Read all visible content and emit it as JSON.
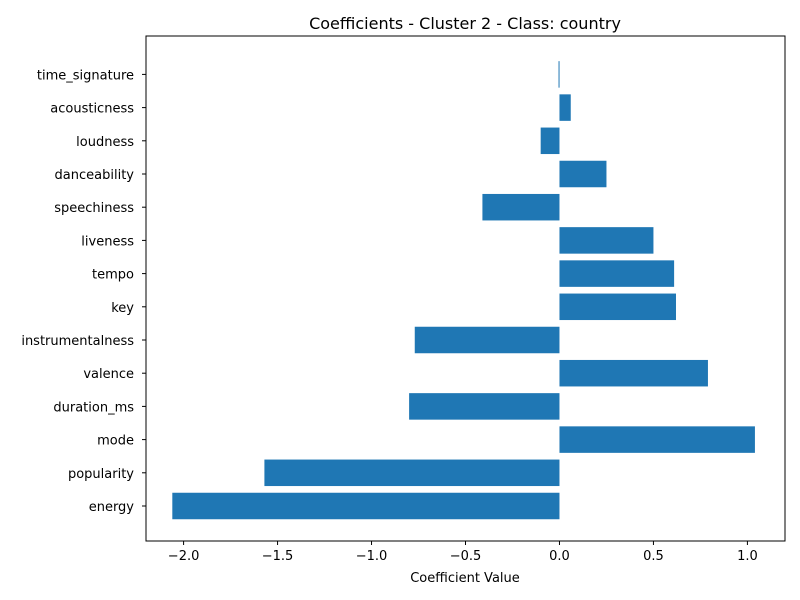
{
  "chart_data": {
    "type": "bar",
    "orientation": "horizontal",
    "title": "Coefficients - Cluster 2 - Class: country",
    "xlabel": "Coefficient Value",
    "ylabel": "",
    "xlim": [
      -2.2,
      1.2
    ],
    "xticks": [
      -2.0,
      -1.5,
      -1.0,
      -0.5,
      0.0,
      0.5,
      1.0
    ],
    "xtick_labels": [
      "−2.0",
      "−1.5",
      "−1.0",
      "−0.5",
      "0.0",
      "0.5",
      "1.0"
    ],
    "grid": false,
    "legend": "none",
    "bar_color": "#1f77b4",
    "categories": [
      "energy",
      "popularity",
      "mode",
      "duration_ms",
      "valence",
      "instrumentalness",
      "key",
      "tempo",
      "liveness",
      "speechiness",
      "danceability",
      "loudness",
      "acousticness",
      "time_signature"
    ],
    "values": [
      -2.06,
      -1.57,
      1.04,
      -0.8,
      0.79,
      -0.77,
      0.62,
      0.61,
      0.5,
      -0.41,
      0.25,
      -0.1,
      0.06,
      -0.005
    ]
  }
}
